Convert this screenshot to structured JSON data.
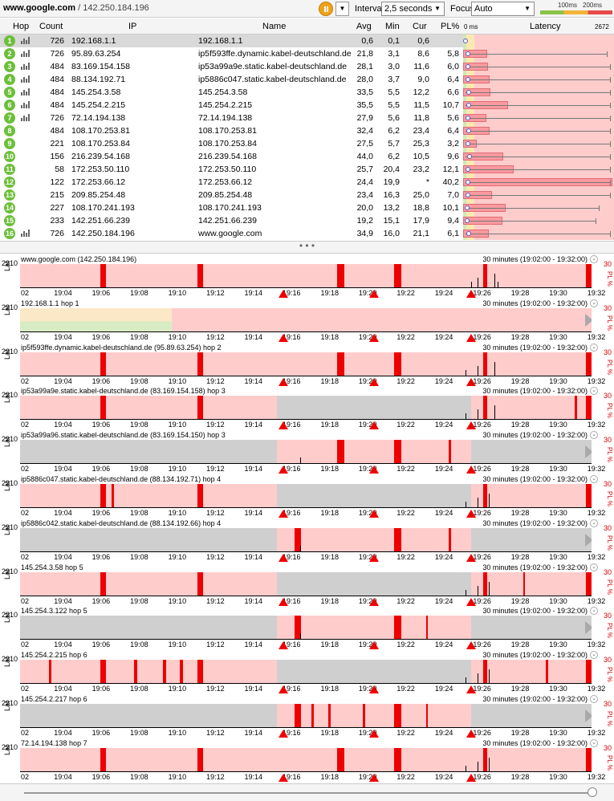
{
  "toolbar": {
    "target_host": "www.google.com",
    "target_ip": "/ 142.250.184.196",
    "interval_label": "Interval",
    "interval_value": "2,5 seconds",
    "focus_label": "Focus",
    "focus_value": "Auto",
    "scale_100": "100ms",
    "scale_200": "200ms"
  },
  "table": {
    "headers": {
      "hop": "Hop",
      "count": "Count",
      "ip": "IP",
      "name": "Name",
      "avg": "Avg",
      "min": "Min",
      "cur": "Cur",
      "pl": "PL%",
      "latency": "Latency",
      "lat_min": "0 ms",
      "lat_max": "2672"
    },
    "rows": [
      {
        "hop": "1",
        "count": "726",
        "ip": "192.168.1.1",
        "name": "192.168.1.1",
        "avg": "0,6",
        "min": "0,1",
        "cur": "0,6",
        "pl": ""
      },
      {
        "hop": "2",
        "count": "726",
        "ip": "95.89.63.254",
        "name": "ip5f593ffe.dynamic.kabel-deutschland.de",
        "avg": "21,8",
        "min": "3,1",
        "cur": "8,6",
        "pl": "5,8"
      },
      {
        "hop": "3",
        "count": "484",
        "ip": "83.169.154.158",
        "name": "ip53a99a9e.static.kabel-deutschland.de",
        "avg": "28,1",
        "min": "3,0",
        "cur": "11,6",
        "pl": "6,0"
      },
      {
        "hop": "4",
        "count": "484",
        "ip": "88.134.192.71",
        "name": "ip5886c047.static.kabel-deutschland.de",
        "avg": "28,0",
        "min": "3,7",
        "cur": "9,0",
        "pl": "6,4"
      },
      {
        "hop": "5",
        "count": "484",
        "ip": "145.254.3.58",
        "name": "145.254.3.58",
        "avg": "33,5",
        "min": "5,5",
        "cur": "12,2",
        "pl": "6,6"
      },
      {
        "hop": "6",
        "count": "484",
        "ip": "145.254.2.215",
        "name": "145.254.2.215",
        "avg": "35,5",
        "min": "5,5",
        "cur": "11,5",
        "pl": "10,7"
      },
      {
        "hop": "7",
        "count": "726",
        "ip": "72.14.194.138",
        "name": "72.14.194.138",
        "avg": "27,9",
        "min": "5,6",
        "cur": "11,8",
        "pl": "5,6"
      },
      {
        "hop": "8",
        "count": "484",
        "ip": "108.170.253.81",
        "name": "108.170.253.81",
        "avg": "32,4",
        "min": "6,2",
        "cur": "23,4",
        "pl": "6,4"
      },
      {
        "hop": "9",
        "count": "221",
        "ip": "108.170.253.84",
        "name": "108.170.253.84",
        "avg": "27,5",
        "min": "5,7",
        "cur": "25,3",
        "pl": "3,2"
      },
      {
        "hop": "10",
        "count": "156",
        "ip": "216.239.54.168",
        "name": "216.239.54.168",
        "avg": "44,0",
        "min": "6,2",
        "cur": "10,5",
        "pl": "9,6"
      },
      {
        "hop": "11",
        "count": "58",
        "ip": "172.253.50.110",
        "name": "172.253.50.110",
        "avg": "25,7",
        "min": "20,4",
        "cur": "23,2",
        "pl": "12,1"
      },
      {
        "hop": "12",
        "count": "122",
        "ip": "172.253.66.12",
        "name": "172.253.66.12",
        "avg": "24,4",
        "min": "19,9",
        "cur": "*",
        "pl": "40,2"
      },
      {
        "hop": "13",
        "count": "215",
        "ip": "209.85.254.48",
        "name": "209.85.254.48",
        "avg": "23,4",
        "min": "16,3",
        "cur": "25,0",
        "pl": "7,0"
      },
      {
        "hop": "14",
        "count": "227",
        "ip": "108.170.241.193",
        "name": "108.170.241.193",
        "avg": "20,0",
        "min": "13,2",
        "cur": "18,8",
        "pl": "10,1"
      },
      {
        "hop": "15",
        "count": "233",
        "ip": "142.251.66.239",
        "name": "142.251.66.239",
        "avg": "19,2",
        "min": "15,1",
        "cur": "17,9",
        "pl": "9,4"
      },
      {
        "hop": "16",
        "count": "726",
        "ip": "142.250.184.196",
        "name": "www.google.com",
        "avg": "34,9",
        "min": "16,0",
        "cur": "21,1",
        "pl": "6,1"
      }
    ]
  },
  "graphs": {
    "ymax": "2210",
    "ylabel": "Lat",
    "pl_max": "30",
    "pl_label": "PL %",
    "range": "30 minutes (19:02:00 - 19:32:00)",
    "x_ticks": [
      "02",
      "19:04",
      "19:06",
      "19:08",
      "19:10",
      "19:12",
      "19:14",
      "19:16",
      "19:18",
      "19:20",
      "19:22",
      "19:24",
      "19:26",
      "19:28",
      "19:30",
      "19:32"
    ],
    "items": [
      {
        "title": "www.google.com (142.250.184.196)"
      },
      {
        "title": "192.168.1.1 hop 1"
      },
      {
        "title": "ip5f593ffe.dynamic.kabel-deutschland.de (95.89.63.254) hop 2"
      },
      {
        "title": "ip53a99a9e.static.kabel-deutschland.de (83.169.154.158) hop 3"
      },
      {
        "title": "ip53a99a96.static.kabel-deutschland.de (83.169.154.150) hop 3"
      },
      {
        "title": "ip5886c047.static.kabel-deutschland.de (88.134.192.71) hop 4"
      },
      {
        "title": "ip5886c042.static.kabel-deutschland.de (88.134.192.66) hop 4"
      },
      {
        "title": "145.254.3.58 hop 5"
      },
      {
        "title": "145.254.3.122 hop 5"
      },
      {
        "title": "145.254.2.215 hop 6"
      },
      {
        "title": "145.254.2.217 hop 6"
      },
      {
        "title": "72.14.194.138 hop 7"
      }
    ]
  }
}
